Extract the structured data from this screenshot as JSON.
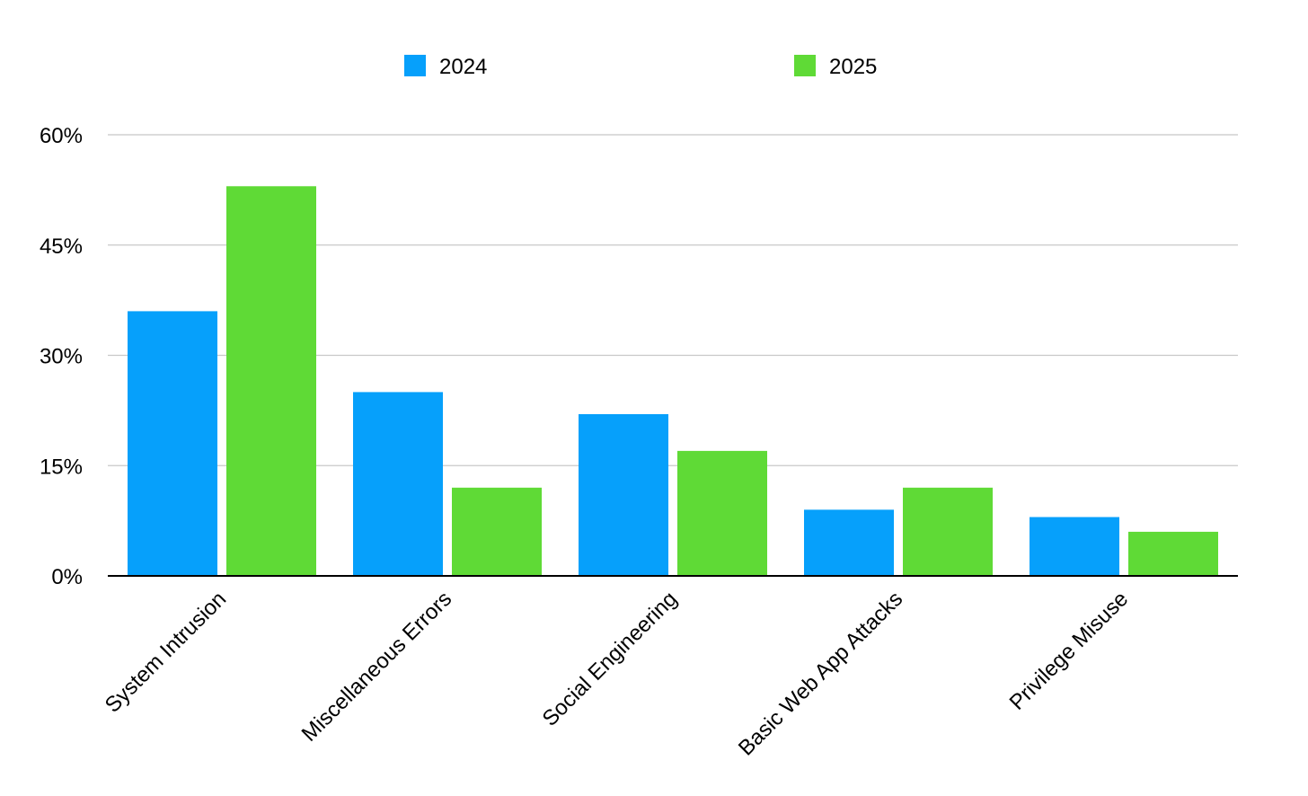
{
  "chart_data": {
    "type": "bar",
    "categories": [
      "System Intrusion",
      "Miscellaneous Errors",
      "Social Engineering",
      "Basic Web App Attacks",
      "Privilege Misuse"
    ],
    "series": [
      {
        "name": "2024",
        "color": "#06a0fb",
        "values": [
          36,
          25,
          22,
          9,
          8
        ]
      },
      {
        "name": "2025",
        "color": "#5fda36",
        "values": [
          53,
          12,
          17,
          12,
          6
        ]
      }
    ],
    "yticks": [
      "0%",
      "15%",
      "30%",
      "45%",
      "60%"
    ],
    "ytick_values": [
      0,
      15,
      30,
      45,
      60
    ],
    "ylim": [
      0,
      60
    ],
    "ylabel": "",
    "xlabel": "",
    "title": "",
    "grid": true,
    "legend_position": "top-center",
    "colors": {
      "gridline": "#c8c8c8",
      "axis": "#000000"
    }
  }
}
